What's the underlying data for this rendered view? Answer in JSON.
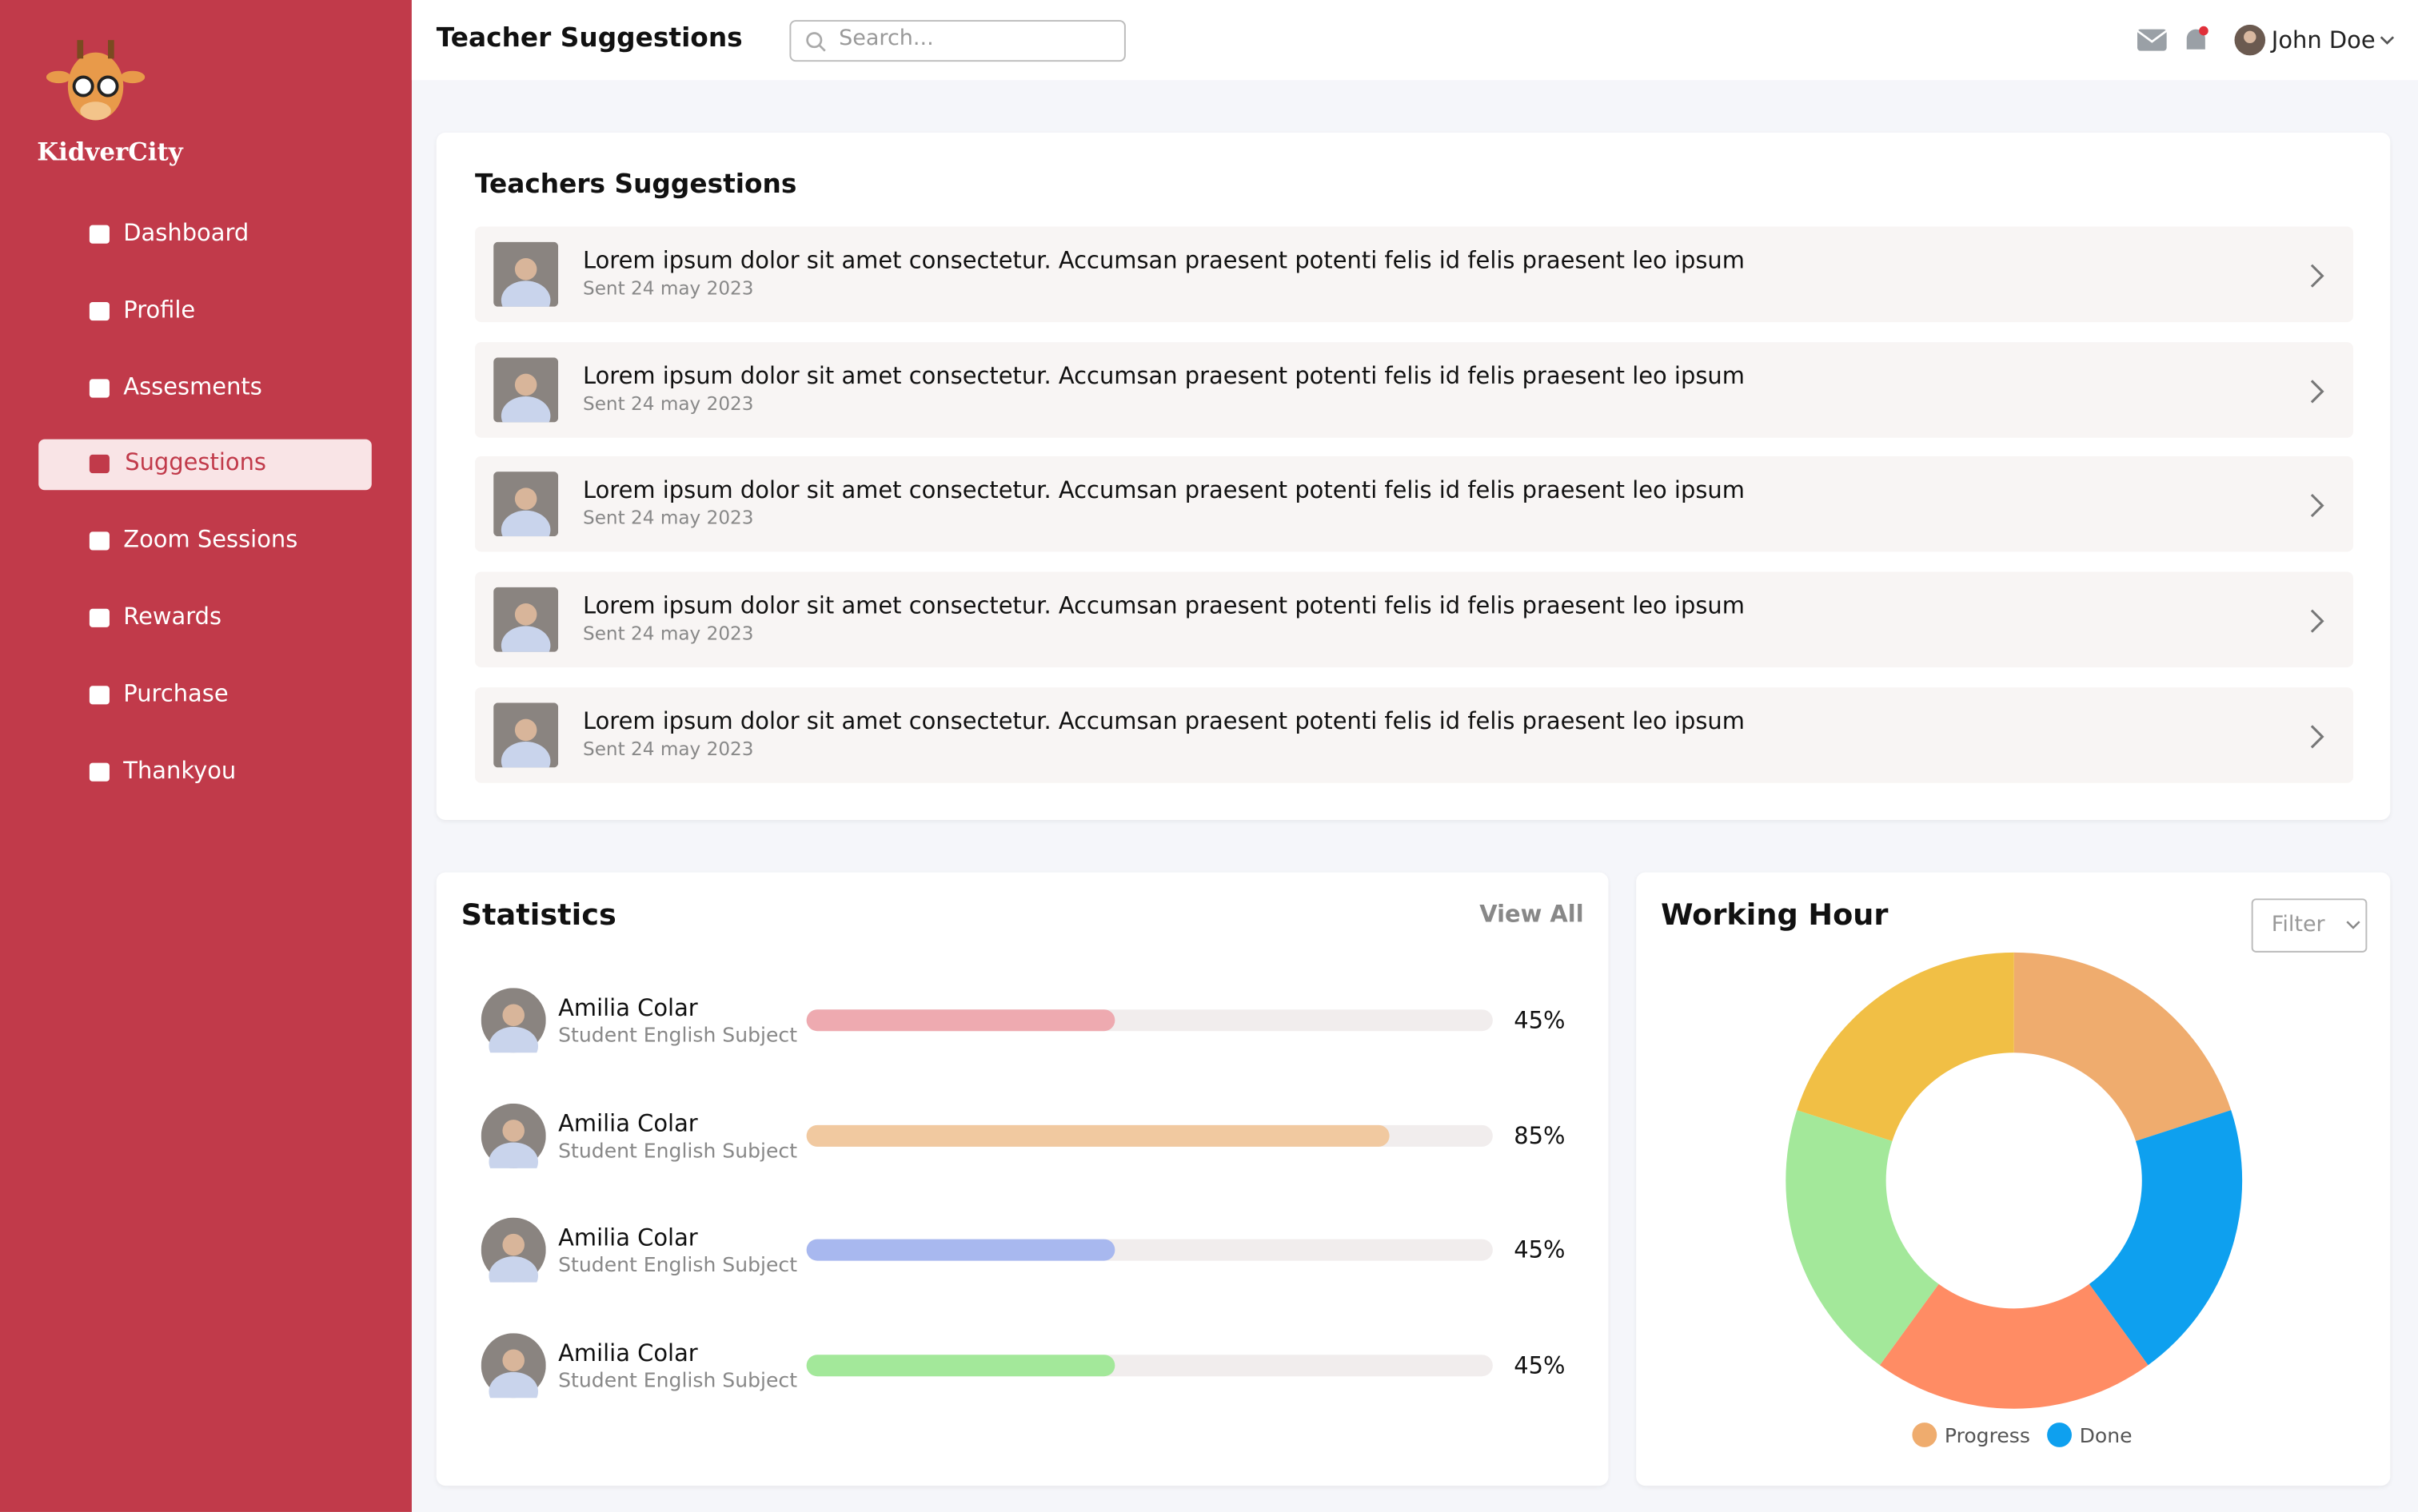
{
  "sidebar": {
    "brand": "KidverCity",
    "nav": [
      "Dashboard",
      "Profile",
      "Assesments",
      "Suggestions",
      "Zoom Sessions",
      "Rewards",
      "Purchase",
      "Thankyou"
    ],
    "active_index": 3
  },
  "header": {
    "title": "Teacher Suggestions",
    "search_placeholder": "Search...",
    "user": "John Doe"
  },
  "suggestions": {
    "title": "Teachers Suggestions",
    "items": [
      {
        "text": "Lorem ipsum dolor sit amet consectetur. Accumsan praesent potenti felis id felis praesent leo ipsum",
        "date": "Sent 24 may 2023"
      },
      {
        "text": "Lorem ipsum dolor sit amet consectetur. Accumsan praesent potenti felis id felis praesent leo ipsum",
        "date": "Sent 24 may 2023"
      },
      {
        "text": "Lorem ipsum dolor sit amet consectetur. Accumsan praesent potenti felis id felis praesent leo ipsum",
        "date": "Sent 24 may 2023"
      },
      {
        "text": "Lorem ipsum dolor sit amet consectetur. Accumsan praesent potenti felis id felis praesent leo ipsum",
        "date": "Sent 24 may 2023"
      },
      {
        "text": "Lorem ipsum dolor sit amet consectetur. Accumsan praesent potenti felis id felis praesent leo ipsum",
        "date": "Sent 24 may 2023"
      }
    ]
  },
  "statistics": {
    "title": "Statistics",
    "view_all": "View All",
    "xlim": [
      0,
      100
    ],
    "rows": [
      {
        "name": "Amilia Colar",
        "subtitle": "Student English Subject",
        "value": 45,
        "value_label": "45%",
        "color": "#eeaab0"
      },
      {
        "name": "Amilia Colar",
        "subtitle": "Student English Subject",
        "value": 85,
        "value_label": "85%",
        "color": "#f1c9a0"
      },
      {
        "name": "Amilia Colar",
        "subtitle": "Student English Subject",
        "value": 45,
        "value_label": "45%",
        "color": "#a8b8ef"
      },
      {
        "name": "Amilia Colar",
        "subtitle": "Student English Subject",
        "value": 45,
        "value_label": "45%",
        "color": "#a3e89a"
      }
    ]
  },
  "chart_data": {
    "type": "donut",
    "title": "Working Hour",
    "filter": "Filter",
    "values": [
      20,
      20,
      20,
      20,
      20
    ],
    "colors": [
      "#efac6e",
      "#0ea0ef",
      "#ff8c64",
      "#a3e89a",
      "#f1bf45"
    ],
    "legend": [
      {
        "name": "Progress",
        "color": "#efac6e"
      },
      {
        "name": "Done",
        "color": "#0ea0ef"
      }
    ]
  }
}
